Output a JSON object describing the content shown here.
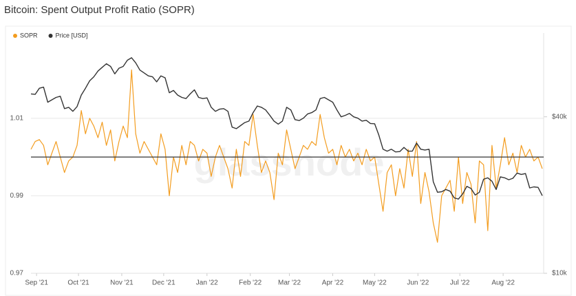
{
  "chart_data": {
    "type": "line",
    "title": "Bitcoin: Spent Output Profit Ratio (SOPR)",
    "watermark": "glassnode",
    "x": [
      0,
      3,
      6,
      9,
      12,
      15,
      18,
      21,
      24,
      27,
      30,
      33,
      36,
      39,
      42,
      45,
      48,
      51,
      54,
      57,
      60,
      63,
      66,
      69,
      72,
      75,
      78,
      81,
      84,
      87,
      90,
      93,
      96,
      99,
      102,
      105,
      108,
      111,
      114,
      117,
      120,
      123,
      126,
      129,
      132,
      135,
      138,
      141,
      144,
      147,
      150,
      153,
      156,
      159,
      162,
      165,
      168,
      171,
      174,
      177,
      180,
      183,
      186,
      189,
      192,
      195,
      198,
      201,
      204,
      207,
      210,
      213,
      216,
      219,
      222,
      225,
      228,
      231,
      234,
      237,
      240,
      243,
      246,
      249,
      252,
      255,
      258,
      261,
      264,
      267,
      270,
      273,
      276,
      279,
      282,
      285,
      288,
      291,
      294,
      297,
      300,
      303,
      306,
      309,
      312,
      315,
      318,
      321,
      324,
      327,
      330,
      333,
      336,
      339,
      342,
      345,
      348,
      351,
      354,
      357,
      360,
      363,
      366
    ],
    "xlim": [
      0,
      367
    ],
    "xticks": [
      {
        "value": 4,
        "label": "Sep '21"
      },
      {
        "value": 34,
        "label": "Oct '21"
      },
      {
        "value": 65,
        "label": "Nov '21"
      },
      {
        "value": 95,
        "label": "Dec '21"
      },
      {
        "value": 126,
        "label": "Jan '22"
      },
      {
        "value": 157,
        "label": "Feb '22"
      },
      {
        "value": 185,
        "label": "Mar '22"
      },
      {
        "value": 216,
        "label": "Apr '22"
      },
      {
        "value": 246,
        "label": "May '22"
      },
      {
        "value": 277,
        "label": "Jun '22"
      },
      {
        "value": 307,
        "label": "Jul '22"
      },
      {
        "value": 338,
        "label": "Aug '22"
      }
    ],
    "ylim": [
      0.97,
      1.032
    ],
    "yticks": [
      0.97,
      0.99,
      1.01
    ],
    "y2lim": [
      10000,
      84000
    ],
    "y2log": true,
    "y2ticks": [
      {
        "value": 10000,
        "label": "$10k"
      },
      {
        "value": 40000,
        "label": "$40k"
      }
    ],
    "reference_line": 1,
    "grid": true,
    "legend": "top-left",
    "series": [
      {
        "name": "SOPR",
        "color": "#f39c1e",
        "axis": "y",
        "values": [
          1.002,
          1.004,
          1.0045,
          1.003,
          0.998,
          1.001,
          1.004,
          1.0,
          0.996,
          0.999,
          1.0,
          1.003,
          1.012,
          1.006,
          1.01,
          1.008,
          1.005,
          1.009,
          1.003,
          1.007,
          0.999,
          1.004,
          1.008,
          1.005,
          1.0225,
          1.006,
          1.001,
          1.004,
          1.002,
          1.0,
          0.998,
          1.006,
          1.002,
          0.99,
          1.0,
          0.996,
          1.003,
          0.998,
          1.004,
          1.003,
          0.999,
          1.002,
          1.001,
          0.995,
          1.0,
          1.003,
          1.0,
          0.997,
          0.992,
          1.002,
          0.995,
          1.004,
          1.003,
          1.011,
          1.003,
          0.996,
          0.999,
          0.996,
          0.989,
          1.001,
          0.998,
          1.007,
          1.002,
          0.997,
          1.0,
          1.003,
          1.002,
          1.004,
          1.003,
          1.011,
          1.005,
          1.001,
          1.002,
          0.998,
          1.003,
          1.0,
          1.002,
          0.999,
          1.001,
          0.998,
          1.002,
          0.999,
          1.0,
          0.993,
          0.986,
          0.996,
          0.998,
          0.99,
          0.997,
          0.992,
          1.002,
          0.995,
          1.004,
          0.988,
          0.996,
          0.991,
          0.983,
          0.978,
          0.99,
          0.992,
          0.994,
          0.986,
          1.0,
          0.988,
          0.996,
          0.993,
          0.983,
          0.999,
          0.998,
          0.981,
          1.003,
          0.992,
          0.998,
          1.005,
          0.998,
          1.001,
          0.996,
          1.003,
          1.0,
          1.002,
          0.999,
          1.0,
          0.997
        ]
      },
      {
        "name": "Price [USD]",
        "color": "#333333",
        "axis": "y2",
        "values": [
          49000,
          48800,
          51500,
          52000,
          45500,
          46500,
          47500,
          48000,
          43000,
          43500,
          42000,
          43800,
          48500,
          51500,
          55000,
          57000,
          60000,
          62000,
          64000,
          62500,
          58500,
          61500,
          62500,
          66000,
          67500,
          64500,
          60500,
          59000,
          57500,
          57000,
          54500,
          57500,
          56500,
          49500,
          50500,
          48500,
          47500,
          47000,
          49000,
          50800,
          47500,
          47000,
          47300,
          43500,
          42000,
          42800,
          43000,
          42000,
          36500,
          36000,
          37000,
          38000,
          38500,
          41500,
          44000,
          43500,
          42500,
          40500,
          38500,
          37500,
          38500,
          43500,
          42500,
          39000,
          38700,
          39500,
          41000,
          41500,
          42500,
          47000,
          47500,
          46500,
          45500,
          42500,
          40000,
          40500,
          41200,
          40000,
          39500,
          38500,
          38800,
          37700,
          37600,
          34000,
          30000,
          29500,
          30000,
          29300,
          29400,
          30500,
          29500,
          29500,
          31700,
          30000,
          29800,
          30000,
          22500,
          20500,
          20600,
          21000,
          20700,
          19500,
          19300,
          20200,
          21600,
          21200,
          20000,
          20500,
          23000,
          23300,
          22600,
          21000,
          23500,
          23300,
          22900,
          23200,
          24300,
          24000,
          24200,
          21300,
          21500,
          21400,
          19900
        ]
      }
    ]
  }
}
